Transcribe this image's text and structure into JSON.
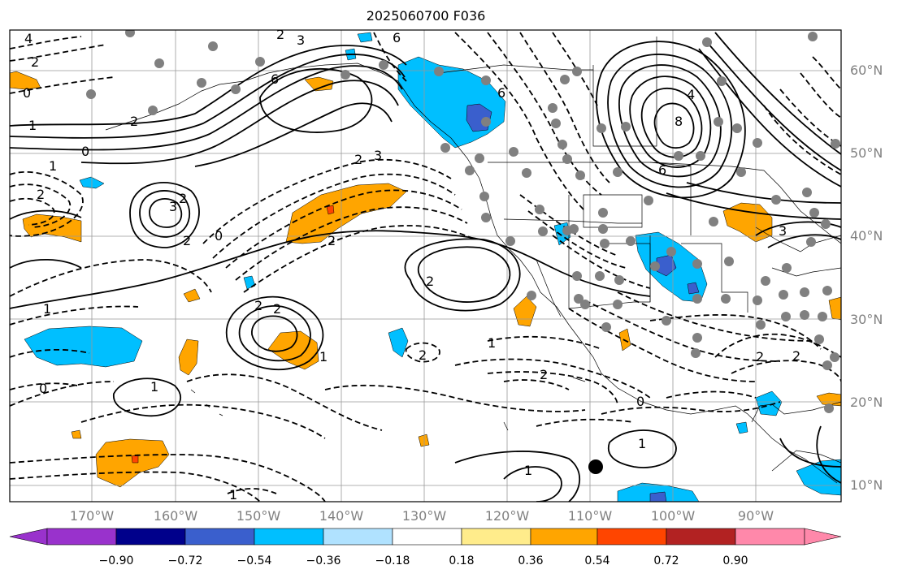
{
  "title": "2025060700 F036",
  "lat_labels": [
    "60°N",
    "50°N",
    "40°N",
    "30°N",
    "20°N",
    "10°N"
  ],
  "lon_labels": [
    "170°W",
    "160°W",
    "150°W",
    "140°W",
    "130°W",
    "120°W",
    "110°W",
    "100°W",
    "90°W"
  ],
  "colorbar": {
    "ticks": [
      "−0.90",
      "−0.72",
      "−0.54",
      "−0.36",
      "−0.18",
      "0.18",
      "0.36",
      "0.54",
      "0.72",
      "0.90"
    ],
    "colors": [
      "#9932cc",
      "#00008b",
      "#3a5fcd",
      "#00bfff",
      "#b0e2ff",
      "#ffffff",
      "#ffec8b",
      "#ffa500",
      "#ff4500",
      "#b22222",
      "#ff88aa"
    ]
  },
  "contour_labels": [
    "4",
    "2",
    "0",
    "2",
    "6",
    "3",
    "2",
    "6",
    "8",
    "4",
    "6",
    "3",
    "2",
    "1",
    "0",
    "1",
    "2",
    "3",
    "2",
    "2",
    "0",
    "2",
    "1",
    "2",
    "2",
    "1",
    "1",
    "2",
    "2",
    "1",
    "0",
    "1",
    "0",
    "1",
    "1",
    "2",
    "3",
    "2",
    "2",
    "6"
  ],
  "icons": [
    "contour-lines",
    "shading-regions",
    "station-dots",
    "coastline"
  ]
}
